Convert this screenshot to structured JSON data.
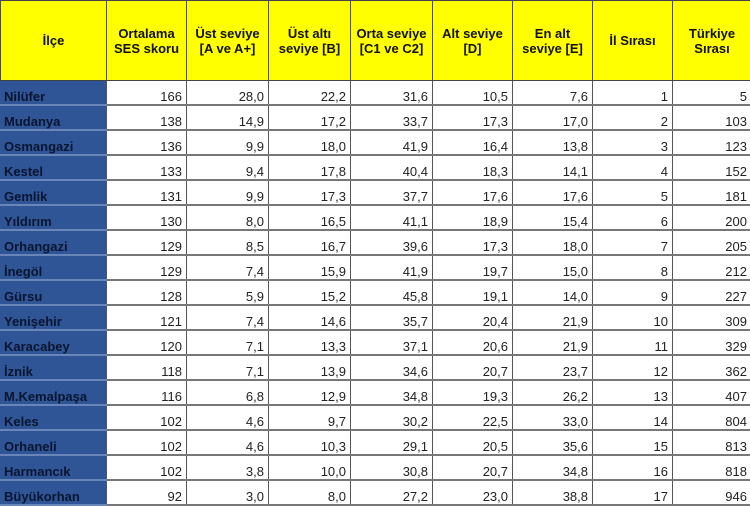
{
  "colors": {
    "header_bg": "#ffff00",
    "name_column_bg": "#2f5597"
  },
  "headers": [
    "İlçe",
    "Ortalama SES skoru",
    "Üst seviye [A ve A+]",
    "Üst altı seviye [B]",
    "Orta seviye [C1 ve C2]",
    "Alt seviye [D]",
    "En alt seviye [E]",
    "İl Sırası",
    "Türkiye Sırası"
  ],
  "rows": [
    [
      "Nilüfer",
      "166",
      "28,0",
      "22,2",
      "31,6",
      "10,5",
      "7,6",
      "1",
      "5"
    ],
    [
      "Mudanya",
      "138",
      "14,9",
      "17,2",
      "33,7",
      "17,3",
      "17,0",
      "2",
      "103"
    ],
    [
      "Osmangazi",
      "136",
      "9,9",
      "18,0",
      "41,9",
      "16,4",
      "13,8",
      "3",
      "123"
    ],
    [
      "Kestel",
      "133",
      "9,4",
      "17,8",
      "40,4",
      "18,3",
      "14,1",
      "4",
      "152"
    ],
    [
      "Gemlik",
      "131",
      "9,9",
      "17,3",
      "37,7",
      "17,6",
      "17,6",
      "5",
      "181"
    ],
    [
      "Yıldırım",
      "130",
      "8,0",
      "16,5",
      "41,1",
      "18,9",
      "15,4",
      "6",
      "200"
    ],
    [
      "Orhangazi",
      "129",
      "8,5",
      "16,7",
      "39,6",
      "17,3",
      "18,0",
      "7",
      "205"
    ],
    [
      "İnegöl",
      "129",
      "7,4",
      "15,9",
      "41,9",
      "19,7",
      "15,0",
      "8",
      "212"
    ],
    [
      "Gürsu",
      "128",
      "5,9",
      "15,2",
      "45,8",
      "19,1",
      "14,0",
      "9",
      "227"
    ],
    [
      "Yenişehir",
      "121",
      "7,4",
      "14,6",
      "35,7",
      "20,4",
      "21,9",
      "10",
      "309"
    ],
    [
      "Karacabey",
      "120",
      "7,1",
      "13,3",
      "37,1",
      "20,6",
      "21,9",
      "11",
      "329"
    ],
    [
      "İznik",
      "118",
      "7,1",
      "13,9",
      "34,6",
      "20,7",
      "23,7",
      "12",
      "362"
    ],
    [
      "M.Kemalpaşa",
      "116",
      "6,8",
      "12,9",
      "34,8",
      "19,3",
      "26,2",
      "13",
      "407"
    ],
    [
      "Keles",
      "102",
      "4,6",
      "9,7",
      "30,2",
      "22,5",
      "33,0",
      "14",
      "804"
    ],
    [
      "Orhaneli",
      "102",
      "4,6",
      "10,3",
      "29,1",
      "20,5",
      "35,6",
      "15",
      "813"
    ],
    [
      "Harmancık",
      "102",
      "3,8",
      "10,0",
      "30,8",
      "20,7",
      "34,8",
      "16",
      "818"
    ],
    [
      "Büyükorhan",
      "92",
      "3,0",
      "8,0",
      "27,2",
      "23,0",
      "38,8",
      "17",
      "946"
    ]
  ]
}
